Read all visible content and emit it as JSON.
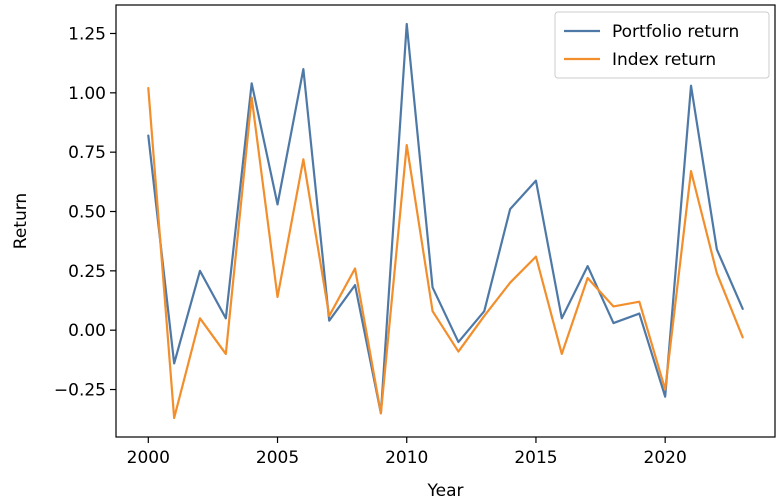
{
  "chart_data": {
    "type": "line",
    "title": "",
    "xlabel": "Year",
    "ylabel": "Return",
    "x": [
      2000,
      2001,
      2002,
      2003,
      2004,
      2005,
      2006,
      2007,
      2008,
      2009,
      2010,
      2011,
      2012,
      2013,
      2014,
      2015,
      2016,
      2017,
      2018,
      2019,
      2020,
      2021,
      2022,
      2023
    ],
    "xlim": [
      1998.75,
      2024.25
    ],
    "ylim": [
      -0.45,
      1.37
    ],
    "xticks": [
      2000,
      2005,
      2010,
      2015,
      2020
    ],
    "xtick_labels": [
      "2000",
      "2005",
      "2010",
      "2015",
      "2020"
    ],
    "yticks": [
      -0.25,
      0.0,
      0.25,
      0.5,
      0.75,
      1.0,
      1.25
    ],
    "ytick_labels": [
      "−0.25",
      "0.00",
      "0.25",
      "0.50",
      "0.75",
      "1.00",
      "1.25"
    ],
    "grid": false,
    "legend_position": "upper right",
    "series": [
      {
        "name": "Portfolio return",
        "color": "#4e79a7",
        "values": [
          0.82,
          -0.14,
          0.25,
          0.05,
          1.04,
          0.53,
          1.1,
          0.04,
          0.19,
          -0.35,
          1.29,
          0.18,
          -0.05,
          0.08,
          0.51,
          0.63,
          0.05,
          0.27,
          0.03,
          0.07,
          -0.28,
          1.03,
          0.34,
          0.09
        ]
      },
      {
        "name": "Index return",
        "color": "#f28e2b",
        "values": [
          1.02,
          -0.37,
          0.05,
          -0.1,
          0.98,
          0.14,
          0.72,
          0.06,
          0.26,
          -0.35,
          0.78,
          0.08,
          -0.09,
          0.06,
          0.2,
          0.31,
          -0.1,
          0.22,
          0.1,
          0.12,
          -0.25,
          0.67,
          0.24,
          -0.03
        ]
      }
    ]
  }
}
